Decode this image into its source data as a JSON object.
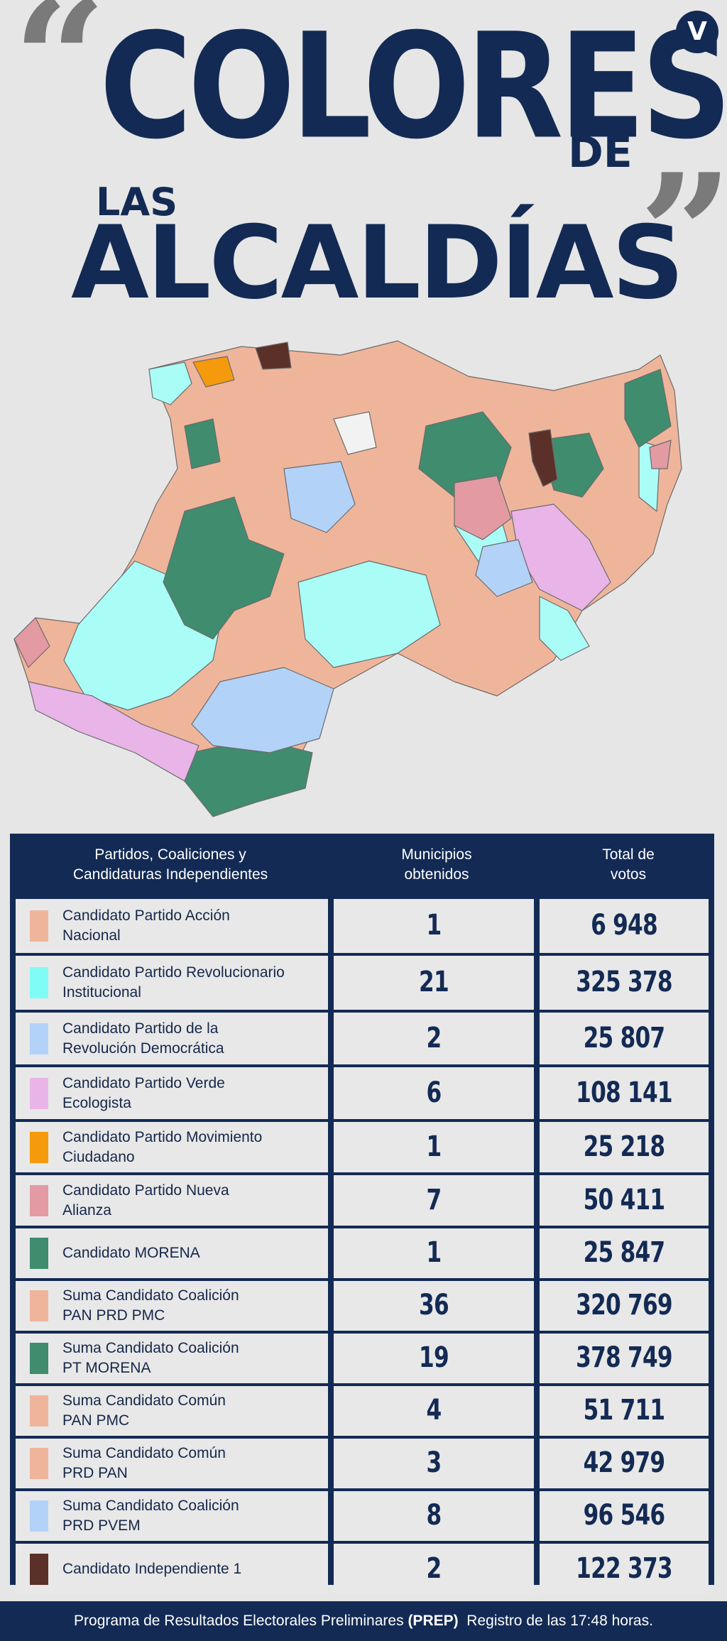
{
  "header": {
    "open_quote": "“",
    "close_quote": "”",
    "word1": "COLORES",
    "word_de": "DE",
    "word_las": "LAS",
    "word2": "ALCALDÍAS",
    "logo_letter": "V"
  },
  "table": {
    "headers": {
      "party": "Partidos, Coaliciones y\nCandidaturas Independientes",
      "municipalities": "Municipios\nobtenidos",
      "votes": "Total de\nvotos"
    },
    "rows": [
      {
        "label": "Candidato Partido Acción\nNacional",
        "color": "#efb59b",
        "municipios": "1",
        "votos": "6 948"
      },
      {
        "label": "Candidato Partido Revolucionario\nInstitucional",
        "color": "#7ffcf6",
        "municipios": "21",
        "votos": "325 378"
      },
      {
        "label": "Candidato Partido de la\nRevolución Democrática",
        "color": "#b3d2f8",
        "municipios": "2",
        "votos": "25 807"
      },
      {
        "label": "Candidato Partido Verde\nEcologista",
        "color": "#e9b4e8",
        "municipios": "6",
        "votos": "108 141"
      },
      {
        "label": "Candidato Partido Movimiento\nCiudadano",
        "color": "#f59a0c",
        "municipios": "1",
        "votos": "25 218"
      },
      {
        "label": "Candidato Partido Nueva\nAlianza",
        "color": "#e39aa2",
        "municipios": "7",
        "votos": "50 411"
      },
      {
        "label": "Candidato MORENA",
        "color": "#3f8c6e",
        "municipios": "1",
        "votos": "25 847"
      },
      {
        "label": "Suma Candidato Coalición\nPAN  PRD PMC",
        "color": "#efb59b",
        "municipios": "36",
        "votos": "320 769"
      },
      {
        "label": "Suma Candidato Coalición\nPT MORENA",
        "color": "#3f8c6e",
        "municipios": "19",
        "votos": "378 749"
      },
      {
        "label": "Suma Candidato Común\n PAN  PMC",
        "color": "#efb59b",
        "municipios": "4",
        "votos": "51 711"
      },
      {
        "label": "Suma Candidato Común\nPRD  PAN",
        "color": "#efb59b",
        "municipios": "3",
        "votos": "42 979"
      },
      {
        "label": "Suma Candidato Coalición\n PRD PVEM",
        "color": "#b3d2f8",
        "municipios": "8",
        "votos": "96 546"
      },
      {
        "label": "Candidato Independiente 1",
        "color": "#5b3028",
        "municipios": "2",
        "votos": "122 373"
      }
    ]
  },
  "footer": {
    "text1": "Programa de Resultados Electorales Preliminares ",
    "prep": "(PREP)",
    "text2": "  Registro de las 17:48 horas."
  },
  "colors": {
    "navy": "#132a54",
    "background": "#e6e6e6",
    "quote_grey": "#7a7a7a"
  }
}
